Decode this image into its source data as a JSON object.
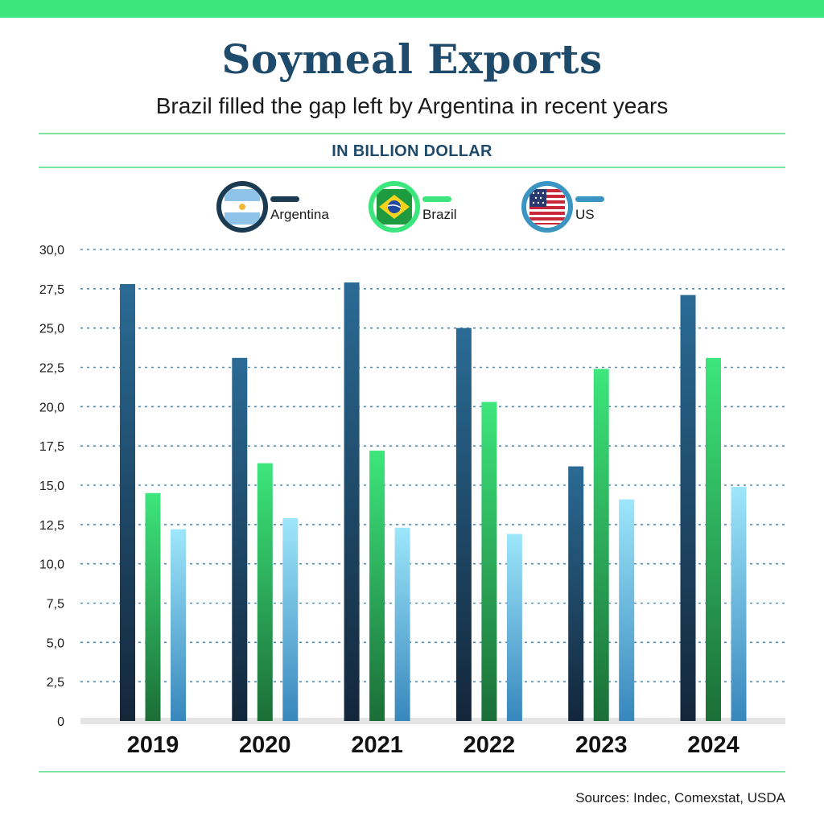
{
  "header": {
    "title": "Soymeal Exports",
    "subtitle": "Brazil filled the gap left by Argentina in recent years",
    "unit_label": "IN BILLION DOLLAR"
  },
  "legend": [
    {
      "name": "Argentina",
      "icon": "argentina-flag-icon",
      "color": "#1b3b52"
    },
    {
      "name": "Brazil",
      "icon": "brazil-flag-icon",
      "color": "#3de67c"
    },
    {
      "name": "US",
      "icon": "us-flag-icon",
      "color": "#3a95c2"
    }
  ],
  "chart_data": {
    "type": "bar",
    "title": "Soymeal Exports",
    "subtitle": "Brazil filled the gap left by Argentina in recent years",
    "xlabel": "",
    "ylabel": "IN BILLION DOLLAR",
    "categories": [
      "2019",
      "2020",
      "2021",
      "2022",
      "2023",
      "2024"
    ],
    "series": [
      {
        "name": "Argentina",
        "values": [
          27.8,
          23.1,
          27.9,
          25.0,
          16.2,
          27.1
        ]
      },
      {
        "name": "Brazil",
        "values": [
          14.5,
          16.4,
          17.2,
          20.3,
          22.4,
          23.1
        ]
      },
      {
        "name": "US",
        "values": [
          12.2,
          12.9,
          12.3,
          11.9,
          14.1,
          14.9
        ]
      }
    ],
    "ylim": [
      0,
      30
    ],
    "yticks": [
      "0",
      "2,5",
      "5,0",
      "7,5",
      "10,0",
      "12,5",
      "15,0",
      "17,5",
      "20,0",
      "22,5",
      "25,0",
      "27,5",
      "30,0"
    ],
    "grid": true,
    "legend_position": "top-center"
  },
  "footer": {
    "sources": "Sources: Indec, Comexstat, USDA"
  }
}
